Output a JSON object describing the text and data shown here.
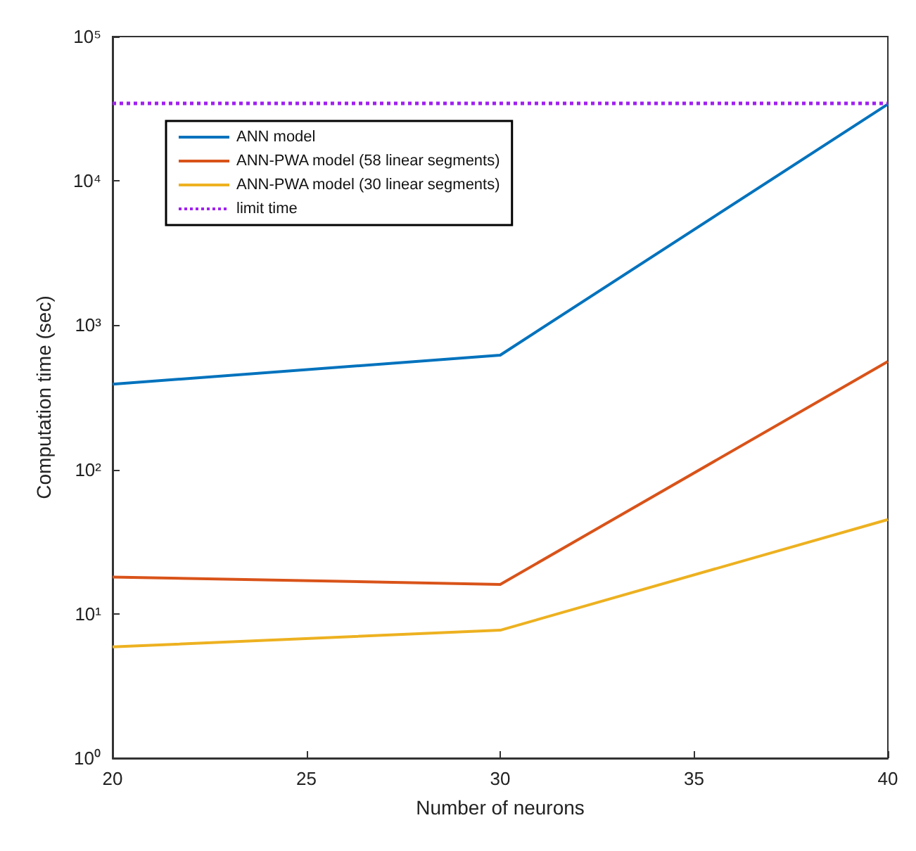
{
  "chart_data": {
    "type": "line",
    "xlabel": "Number of neurons",
    "ylabel": "Computation time (sec)",
    "x": [
      20,
      30,
      40
    ],
    "series": [
      {
        "name": "ANN model",
        "color": "#0072bd",
        "values": [
          390,
          620,
          34000
        ]
      },
      {
        "name": "ANN-PWA model (58 linear segments)",
        "color": "#d95319",
        "values": [
          18,
          16,
          560
        ]
      },
      {
        "name": "ANN-PWA model (30 linear segments)",
        "color": "#edb120",
        "values": [
          5.9,
          7.7,
          45
        ]
      }
    ],
    "ref_lines": [
      {
        "axis": "y",
        "value": 35000,
        "label": "limit time",
        "color": "#a020f0",
        "line_style": "dotted"
      }
    ],
    "log": "y",
    "xlim": [
      20,
      40
    ],
    "xticks": [
      20,
      25,
      30,
      35,
      40
    ],
    "ylim": [
      1,
      100000
    ],
    "yticks": [
      {
        "value": 1,
        "label": "10⁰"
      },
      {
        "value": 10,
        "label": "10¹"
      },
      {
        "value": 100,
        "label": "10²"
      },
      {
        "value": 1000,
        "label": "10³"
      },
      {
        "value": 10000,
        "label": "10⁴"
      },
      {
        "value": 100000,
        "label": "10⁵"
      }
    ],
    "legend": "top left",
    "grid": false,
    "marker": "none",
    "line_style": "solid"
  }
}
